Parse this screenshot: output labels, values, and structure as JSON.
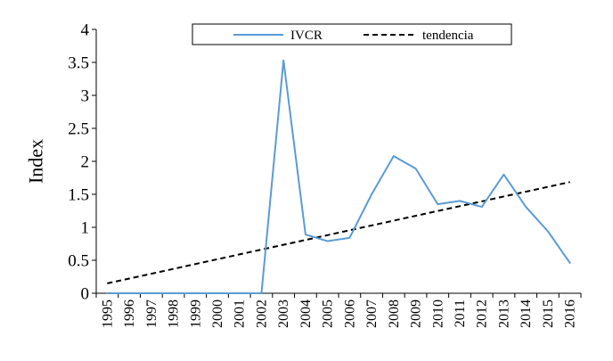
{
  "chart_data": {
    "type": "line",
    "x": [
      "1995",
      "1996",
      "1997",
      "1998",
      "1999",
      "2000",
      "2001",
      "2002",
      "2003",
      "2004",
      "2005",
      "2006",
      "2007",
      "2008",
      "2009",
      "2010",
      "2011",
      "2012",
      "2013",
      "2014",
      "2015",
      "2016"
    ],
    "series": [
      {
        "name": "IVCR",
        "color": "#5b9bd5",
        "style": "solid",
        "values": [
          0,
          0,
          0,
          0,
          0,
          0,
          0,
          0,
          3.53,
          0.89,
          0.79,
          0.84,
          1.5,
          2.08,
          1.89,
          1.35,
          1.4,
          1.31,
          1.8,
          1.31,
          0.94,
          0.46
        ]
      },
      {
        "name": "tendencia",
        "color": "#000000",
        "style": "dashed",
        "values": [
          0.15,
          0.223,
          0.296,
          0.369,
          0.443,
          0.516,
          0.589,
          0.662,
          0.735,
          0.808,
          0.881,
          0.955,
          1.028,
          1.101,
          1.174,
          1.247,
          1.32,
          1.393,
          1.467,
          1.54,
          1.613,
          1.686
        ]
      }
    ],
    "title": "",
    "xlabel": "",
    "ylabel": "Index",
    "ylim": [
      0,
      4
    ],
    "yticks": [
      "0",
      "0.5",
      "1",
      "1.5",
      "2",
      "2.5",
      "3",
      "3.5",
      "4"
    ],
    "grid": false,
    "legend": "top-center"
  }
}
